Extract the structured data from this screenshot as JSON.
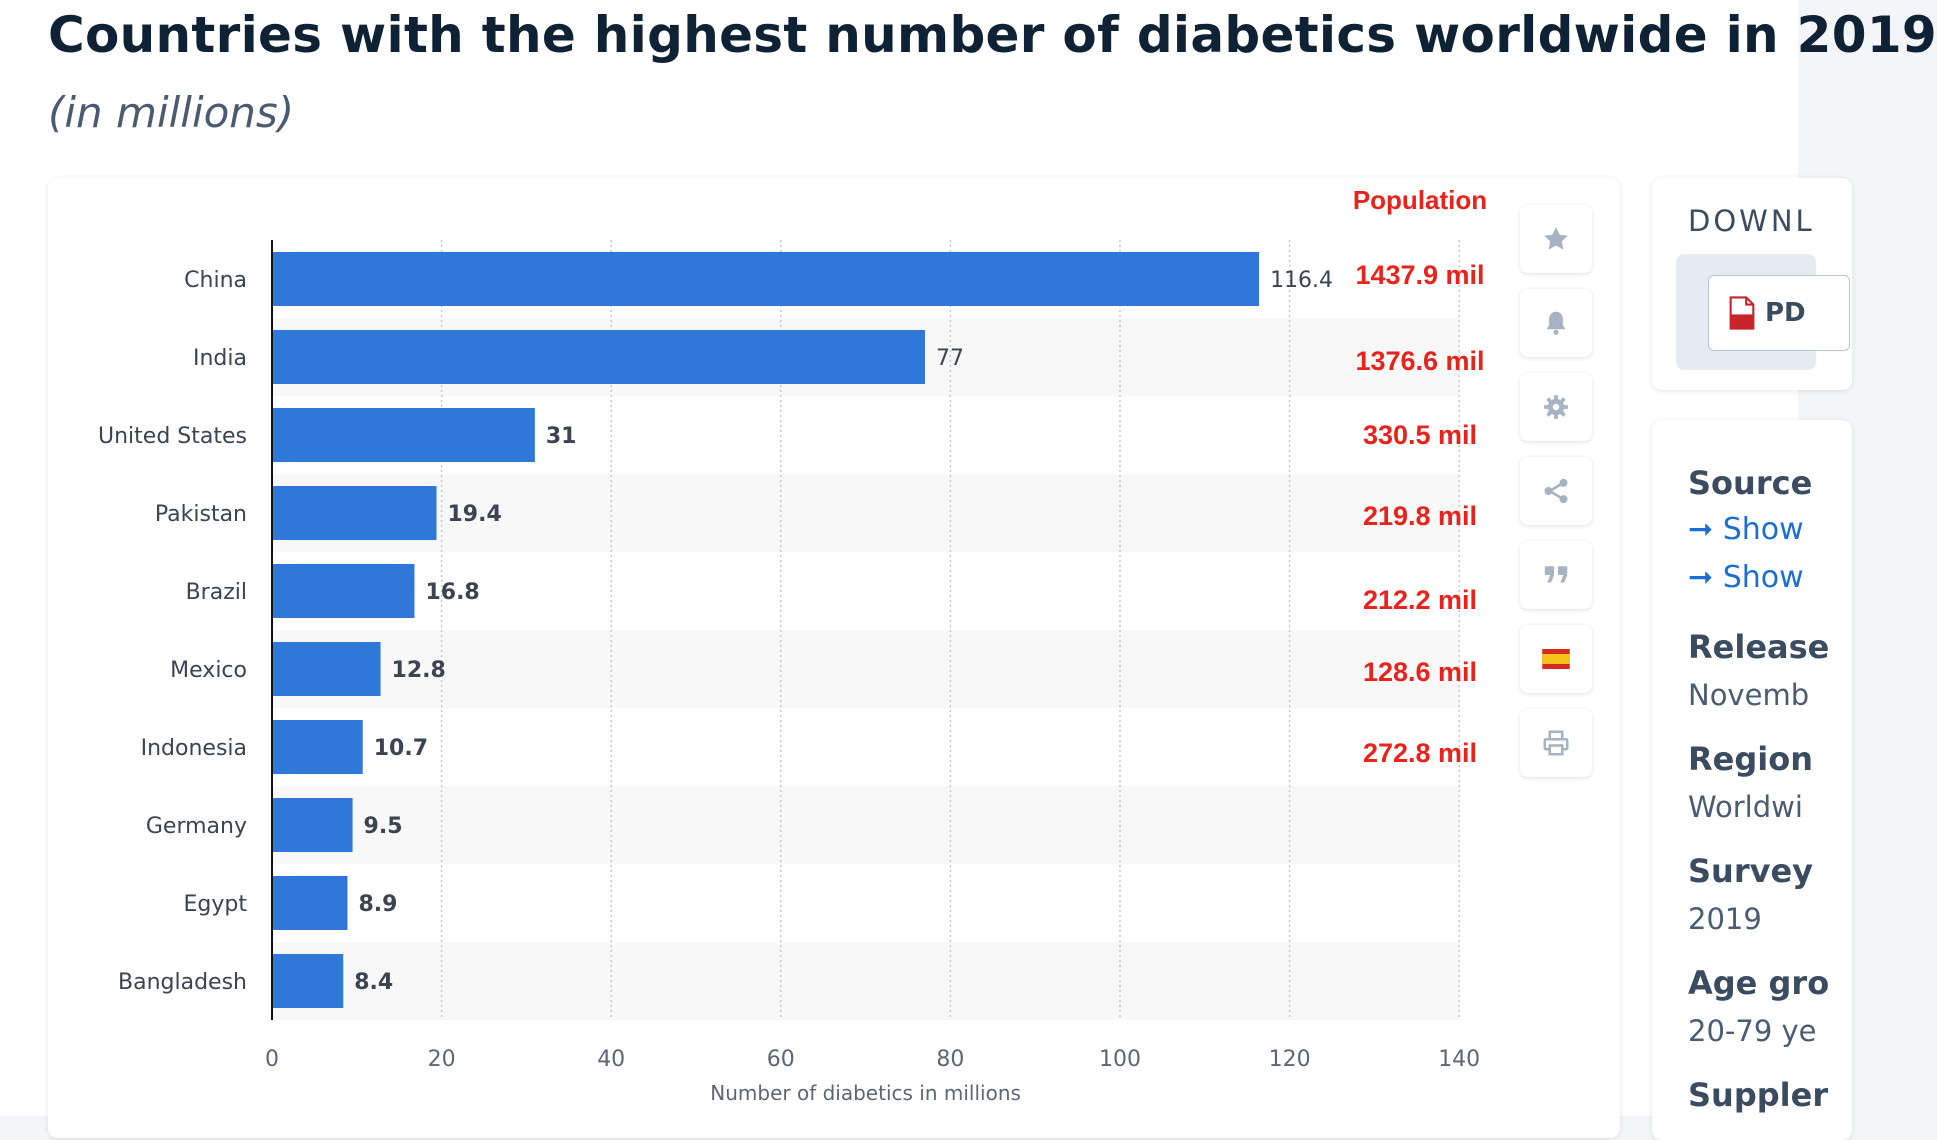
{
  "page": {
    "title": "Countries with the highest number of diabetics worldwide in 2019",
    "subtitle": "(in millions)"
  },
  "chart_data": {
    "type": "bar",
    "orientation": "horizontal",
    "categories": [
      "China",
      "India",
      "United States",
      "Pakistan",
      "Brazil",
      "Mexico",
      "Indonesia",
      "Germany",
      "Egypt",
      "Bangladesh"
    ],
    "values": [
      116.4,
      77,
      31,
      19.4,
      16.8,
      12.8,
      10.7,
      9.5,
      8.9,
      8.4
    ],
    "value_labels": [
      "116.4",
      "77",
      "31",
      "19.4",
      "16.8",
      "12.8",
      "10.7",
      "9.5",
      "8.9",
      "8.4"
    ],
    "xlabel": "Number of diabetics in millions",
    "xlim": [
      0,
      140
    ],
    "x_ticks": [
      "0",
      "20",
      "40",
      "60",
      "80",
      "100",
      "120",
      "140"
    ],
    "x_tick_values": [
      0,
      20,
      40,
      60,
      80,
      100,
      120,
      140
    ],
    "grid": "vertical dotted",
    "bar_color": "#2f78d9",
    "annotation": {
      "header": "Population",
      "color": "#e8231c",
      "labels": [
        "1437.9 mil",
        "1376.6 mil",
        "330.5 mil",
        "219.8 mil",
        "212.2 mil",
        "128.6 mil",
        "272.8 mil"
      ]
    }
  },
  "toolbar": {
    "icons": [
      "star-icon",
      "bell-icon",
      "gear-icon",
      "share-icon",
      "quote-icon",
      "spain-flag-icon",
      "print-icon"
    ]
  },
  "sidebar": {
    "download_title": "DOWNL",
    "pdf_label": "PD",
    "source_label": "Source",
    "source_links": [
      "Show",
      "Show"
    ],
    "release_label": "Release",
    "release_value": "Novemb",
    "region_label": "Region",
    "region_value": "Worldwi",
    "survey_label": "Survey",
    "survey_value": "2019",
    "age_label": "Age gro",
    "age_value": "20-79 ye",
    "supplement_label": "Suppler"
  },
  "colors": {
    "title": "#0f2235",
    "bar": "#2f78d9",
    "annotation": "#e8231c",
    "link": "#1c6fd0"
  }
}
